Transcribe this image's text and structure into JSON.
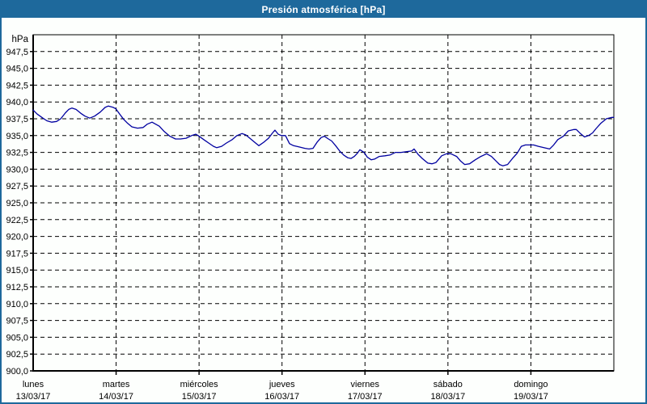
{
  "window": {
    "title": "Presión atmosférica [hPa]"
  },
  "colors": {
    "frame_and_titlebar": "#1e699c",
    "title_text": "#ffffff",
    "plot_background": "#fdfffd",
    "axis": "#000000",
    "gridlines": "#000000",
    "series_line": "#0000a0",
    "labels": "#000000"
  },
  "chart_data": {
    "type": "line",
    "title": "Presión atmosférica [hPa]",
    "unit_label": "hPa",
    "ylim": [
      900,
      950
    ],
    "y_tick_step": 2.5,
    "y_tick_labels_top_to_bottom": [
      "947,5",
      "945,0",
      "942,5",
      "940,0",
      "937,5",
      "935,0",
      "932,5",
      "930,0",
      "927,5",
      "925,0",
      "922,5",
      "920,0",
      "917,5",
      "915,0",
      "912,5",
      "910,0",
      "907,5",
      "905,0",
      "902,5",
      "900,0"
    ],
    "grid": {
      "horizontal": "dashed",
      "vertical_day_boundaries": "dashed",
      "legend": "none"
    },
    "x_axis": {
      "range_days": [
        0,
        7
      ],
      "days": [
        {
          "weekday": "lunes",
          "date": "13/03/17"
        },
        {
          "weekday": "martes",
          "date": "14/03/17"
        },
        {
          "weekday": "miércoles",
          "date": "15/03/17"
        },
        {
          "weekday": "jueves",
          "date": "16/03/17"
        },
        {
          "weekday": "viernes",
          "date": "17/03/17"
        },
        {
          "weekday": "sábado",
          "date": "18/03/17"
        },
        {
          "weekday": "domingo",
          "date": "19/03/17"
        }
      ]
    },
    "series": [
      {
        "name": "Presión atmosférica",
        "color": "#0000a0",
        "x_unit": "days since 13/03/17 00:00",
        "y_unit": "hPa",
        "points": [
          [
            0.0,
            938.8
          ],
          [
            0.049,
            938.2
          ],
          [
            0.117,
            937.6
          ],
          [
            0.166,
            937.2
          ],
          [
            0.224,
            937.0
          ],
          [
            0.283,
            937.1
          ],
          [
            0.332,
            937.5
          ],
          [
            0.39,
            938.4
          ],
          [
            0.429,
            938.9
          ],
          [
            0.468,
            939.1
          ],
          [
            0.517,
            938.9
          ],
          [
            0.575,
            938.3
          ],
          [
            0.624,
            937.9
          ],
          [
            0.682,
            937.6
          ],
          [
            0.741,
            937.9
          ],
          [
            0.809,
            938.5
          ],
          [
            0.868,
            939.2
          ],
          [
            0.907,
            939.4
          ],
          [
            0.965,
            939.2
          ],
          [
            0.995,
            939.0
          ],
          [
            1.043,
            938.2
          ],
          [
            1.092,
            937.4
          ],
          [
            1.141,
            936.8
          ],
          [
            1.19,
            936.3
          ],
          [
            1.258,
            936.1
          ],
          [
            1.326,
            936.2
          ],
          [
            1.375,
            936.7
          ],
          [
            1.433,
            937.0
          ],
          [
            1.521,
            936.4
          ],
          [
            1.58,
            935.6
          ],
          [
            1.648,
            934.9
          ],
          [
            1.716,
            934.5
          ],
          [
            1.775,
            934.5
          ],
          [
            1.843,
            934.6
          ],
          [
            1.911,
            935.0
          ],
          [
            1.96,
            935.2
          ],
          [
            1.989,
            935.0
          ],
          [
            2.057,
            934.4
          ],
          [
            2.116,
            933.9
          ],
          [
            2.174,
            933.4
          ],
          [
            2.213,
            933.2
          ],
          [
            2.272,
            933.4
          ],
          [
            2.33,
            933.9
          ],
          [
            2.399,
            934.4
          ],
          [
            2.457,
            935.0
          ],
          [
            2.516,
            935.3
          ],
          [
            2.564,
            935.1
          ],
          [
            2.623,
            934.5
          ],
          [
            2.681,
            933.9
          ],
          [
            2.72,
            933.5
          ],
          [
            2.779,
            934.0
          ],
          [
            2.837,
            934.6
          ],
          [
            2.886,
            935.4
          ],
          [
            2.915,
            935.8
          ],
          [
            2.954,
            935.2
          ],
          [
            2.993,
            935.0
          ],
          [
            3.042,
            935.0
          ],
          [
            3.091,
            933.8
          ],
          [
            3.139,
            933.5
          ],
          [
            3.208,
            933.3
          ],
          [
            3.276,
            933.1
          ],
          [
            3.325,
            933.0
          ],
          [
            3.373,
            933.1
          ],
          [
            3.422,
            934.0
          ],
          [
            3.471,
            934.7
          ],
          [
            3.51,
            934.9
          ],
          [
            3.559,
            934.5
          ],
          [
            3.598,
            934.2
          ],
          [
            3.646,
            933.5
          ],
          [
            3.695,
            932.7
          ],
          [
            3.744,
            932.1
          ],
          [
            3.793,
            931.7
          ],
          [
            3.832,
            931.6
          ],
          [
            3.871,
            931.9
          ],
          [
            3.91,
            932.4
          ],
          [
            3.939,
            932.9
          ],
          [
            3.988,
            932.5
          ],
          [
            4.027,
            931.8
          ],
          [
            4.076,
            931.4
          ],
          [
            4.115,
            931.5
          ],
          [
            4.173,
            931.9
          ],
          [
            4.241,
            932.0
          ],
          [
            4.3,
            932.1
          ],
          [
            4.368,
            932.5
          ],
          [
            4.436,
            932.5
          ],
          [
            4.495,
            932.6
          ],
          [
            4.563,
            932.7
          ],
          [
            4.592,
            933.0
          ],
          [
            4.641,
            932.2
          ],
          [
            4.69,
            931.6
          ],
          [
            4.758,
            930.9
          ],
          [
            4.807,
            930.8
          ],
          [
            4.856,
            931.0
          ],
          [
            4.924,
            932.0
          ],
          [
            4.983,
            932.3
          ],
          [
            5.036,
            932.3
          ],
          [
            5.105,
            931.9
          ],
          [
            5.153,
            931.2
          ],
          [
            5.202,
            930.7
          ],
          [
            5.261,
            930.8
          ],
          [
            5.329,
            931.4
          ],
          [
            5.397,
            931.9
          ],
          [
            5.466,
            932.3
          ],
          [
            5.524,
            931.9
          ],
          [
            5.573,
            931.3
          ],
          [
            5.622,
            930.7
          ],
          [
            5.661,
            930.5
          ],
          [
            5.719,
            930.7
          ],
          [
            5.778,
            931.6
          ],
          [
            5.836,
            932.4
          ],
          [
            5.885,
            933.4
          ],
          [
            5.934,
            933.6
          ],
          [
            5.983,
            933.6
          ],
          [
            6.032,
            933.6
          ],
          [
            6.09,
            933.4
          ],
          [
            6.158,
            933.2
          ],
          [
            6.226,
            933.0
          ],
          [
            6.275,
            933.6
          ],
          [
            6.324,
            934.4
          ],
          [
            6.392,
            934.9
          ],
          [
            6.451,
            935.7
          ],
          [
            6.519,
            935.9
          ],
          [
            6.548,
            935.9
          ],
          [
            6.597,
            935.3
          ],
          [
            6.646,
            934.8
          ],
          [
            6.695,
            935.0
          ],
          [
            6.744,
            935.4
          ],
          [
            6.783,
            936.0
          ],
          [
            6.841,
            936.8
          ],
          [
            6.909,
            937.5
          ],
          [
            6.978,
            937.7
          ],
          [
            7.0,
            937.7
          ]
        ]
      }
    ]
  }
}
